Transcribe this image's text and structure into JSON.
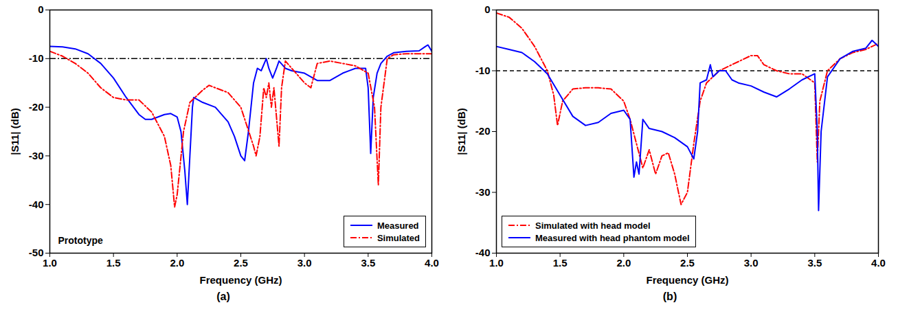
{
  "chart_data": [
    {
      "type": "line",
      "panel_label": "(a)",
      "x_label": "Frequency (GHz)",
      "y_label": "|S11| (dB)",
      "xlim": [
        1,
        4
      ],
      "xticks": [
        {
          "value": 1,
          "label": "1.0"
        },
        {
          "value": 1.5,
          "label": "1.5"
        },
        {
          "value": 2,
          "label": "2.0"
        },
        {
          "value": 2.5,
          "label": "2.5"
        },
        {
          "value": 3,
          "label": "3.0"
        },
        {
          "value": 3.5,
          "label": "3.5"
        },
        {
          "value": 4,
          "label": "4.0"
        }
      ],
      "ylim": [
        -50,
        0
      ],
      "yticks": [
        -50,
        -40,
        -30,
        -20,
        -10,
        0
      ],
      "legend": "lower right",
      "reference_lines": [
        {
          "y": -10,
          "line_style": "dashdot"
        }
      ],
      "annotations": [
        {
          "text": "Prototype"
        }
      ],
      "series": [
        {
          "name": "Measured",
          "color": "#0000ff",
          "line_style": "solid",
          "x": [
            1.0,
            1.1,
            1.2,
            1.3,
            1.4,
            1.5,
            1.6,
            1.7,
            1.75,
            1.8,
            1.85,
            1.9,
            1.95,
            2.0,
            2.03,
            2.06,
            2.08,
            2.1,
            2.12,
            2.13,
            2.2,
            2.3,
            2.4,
            2.45,
            2.5,
            2.53,
            2.56,
            2.6,
            2.63,
            2.66,
            2.7,
            2.72,
            2.75,
            2.78,
            2.8,
            2.85,
            2.9,
            3.0,
            3.1,
            3.2,
            3.3,
            3.4,
            3.48,
            3.5,
            3.52,
            3.54,
            3.57,
            3.6,
            3.65,
            3.7,
            3.8,
            3.9,
            3.95,
            3.97,
            4.0
          ],
          "values": [
            -7.5,
            -7.6,
            -8,
            -9,
            -11,
            -14,
            -18,
            -21.5,
            -22.5,
            -22.5,
            -22,
            -21.5,
            -21.3,
            -22,
            -25,
            -33,
            -40,
            -30,
            -20,
            -18,
            -19,
            -20,
            -23,
            -26,
            -30,
            -31,
            -25,
            -15,
            -12,
            -12.5,
            -10,
            -12,
            -14,
            -12,
            -10.5,
            -12,
            -12.5,
            -13,
            -14.5,
            -14.5,
            -13,
            -12,
            -12,
            -16,
            -29.5,
            -18,
            -13,
            -11,
            -9.5,
            -8.8,
            -8.5,
            -8.4,
            -7.5,
            -7.2,
            -8.5
          ]
        },
        {
          "name": "Simulated",
          "color": "#ff0000",
          "line_style": "dashdot",
          "x": [
            1.0,
            1.1,
            1.2,
            1.3,
            1.4,
            1.5,
            1.6,
            1.7,
            1.8,
            1.9,
            1.95,
            1.98,
            2.0,
            2.05,
            2.1,
            2.2,
            2.25,
            2.3,
            2.4,
            2.5,
            2.55,
            2.6,
            2.62,
            2.65,
            2.68,
            2.7,
            2.72,
            2.74,
            2.76,
            2.8,
            2.82,
            2.85,
            2.9,
            3.0,
            3.05,
            3.1,
            3.2,
            3.3,
            3.4,
            3.5,
            3.55,
            3.58,
            3.6,
            3.65,
            3.7,
            3.8,
            3.9,
            4.0
          ],
          "values": [
            -8.5,
            -9.5,
            -11,
            -13,
            -16,
            -18,
            -18.5,
            -18.5,
            -21,
            -26,
            -32,
            -40.5,
            -38,
            -25,
            -19,
            -16.5,
            -15.5,
            -16,
            -17,
            -20,
            -24,
            -28,
            -30,
            -26,
            -16,
            -18,
            -15,
            -20,
            -16,
            -28,
            -16,
            -10.5,
            -12,
            -15,
            -16,
            -11,
            -10.5,
            -11,
            -11.5,
            -13,
            -20,
            -36,
            -20,
            -10,
            -9.2,
            -9,
            -9,
            -9
          ]
        }
      ]
    },
    {
      "type": "line",
      "panel_label": "(b)",
      "x_label": "Frequency (GHz)",
      "y_label": "|S11| (dB)",
      "xlim": [
        1,
        4
      ],
      "xticks": [
        {
          "value": 1,
          "label": "1.0"
        },
        {
          "value": 1.5,
          "label": "1.5"
        },
        {
          "value": 2,
          "label": "2.0"
        },
        {
          "value": 2.5,
          "label": "2.5"
        },
        {
          "value": 3,
          "label": "3.0"
        },
        {
          "value": 3.5,
          "label": "3.5"
        },
        {
          "value": 4,
          "label": "4.0"
        }
      ],
      "ylim": [
        -40,
        0
      ],
      "yticks": [
        -40,
        -30,
        -20,
        -10,
        0
      ],
      "legend": "lower left",
      "reference_lines": [
        {
          "y": -10,
          "line_style": "dashed"
        }
      ],
      "series": [
        {
          "name": "Simulated with head model",
          "color": "#ff0000",
          "line_style": "dashdot",
          "x": [
            1.0,
            1.1,
            1.2,
            1.3,
            1.4,
            1.45,
            1.48,
            1.52,
            1.6,
            1.7,
            1.8,
            1.9,
            2.0,
            2.05,
            2.1,
            2.15,
            2.2,
            2.25,
            2.3,
            2.35,
            2.4,
            2.45,
            2.5,
            2.55,
            2.6,
            2.65,
            2.7,
            2.75,
            2.8,
            2.9,
            3.0,
            3.05,
            3.1,
            3.2,
            3.3,
            3.4,
            3.5,
            3.52,
            3.54,
            3.6,
            3.7,
            3.8,
            3.9,
            4.0
          ],
          "values": [
            -0.5,
            -1.2,
            -3,
            -6,
            -10,
            -14,
            -19,
            -15,
            -13,
            -12.8,
            -12.8,
            -13,
            -15,
            -18,
            -22,
            -26,
            -23,
            -27,
            -24,
            -23.5,
            -27,
            -32,
            -30,
            -22,
            -15,
            -12,
            -11,
            -10,
            -9.5,
            -8.5,
            -7.5,
            -7.5,
            -9,
            -10,
            -10.5,
            -10.5,
            -12,
            -25,
            -15,
            -10,
            -8,
            -7,
            -6.5,
            -5.5
          ]
        },
        {
          "name": "Measured with head phantom model",
          "color": "#0000ff",
          "line_style": "solid",
          "x": [
            1.0,
            1.1,
            1.2,
            1.3,
            1.4,
            1.5,
            1.6,
            1.7,
            1.8,
            1.9,
            2.0,
            2.05,
            2.08,
            2.1,
            2.12,
            2.15,
            2.2,
            2.3,
            2.4,
            2.5,
            2.55,
            2.58,
            2.6,
            2.65,
            2.68,
            2.7,
            2.75,
            2.8,
            2.85,
            2.9,
            3.0,
            3.1,
            3.2,
            3.3,
            3.4,
            3.5,
            3.52,
            3.53,
            3.55,
            3.6,
            3.7,
            3.8,
            3.9,
            3.95,
            4.0
          ],
          "values": [
            -6,
            -6.5,
            -7,
            -8.5,
            -10.5,
            -14,
            -17.5,
            -19,
            -18.5,
            -17,
            -16.5,
            -18,
            -27.5,
            -25,
            -27,
            -18,
            -19.5,
            -20,
            -21,
            -22.5,
            -24.5,
            -20,
            -12,
            -11.5,
            -9,
            -11,
            -10,
            -10,
            -11.5,
            -12,
            -12.5,
            -13.5,
            -14.3,
            -13,
            -11.5,
            -10.5,
            -20,
            -33,
            -20,
            -11,
            -8,
            -6.8,
            -6.3,
            -5,
            -6
          ]
        }
      ]
    }
  ]
}
